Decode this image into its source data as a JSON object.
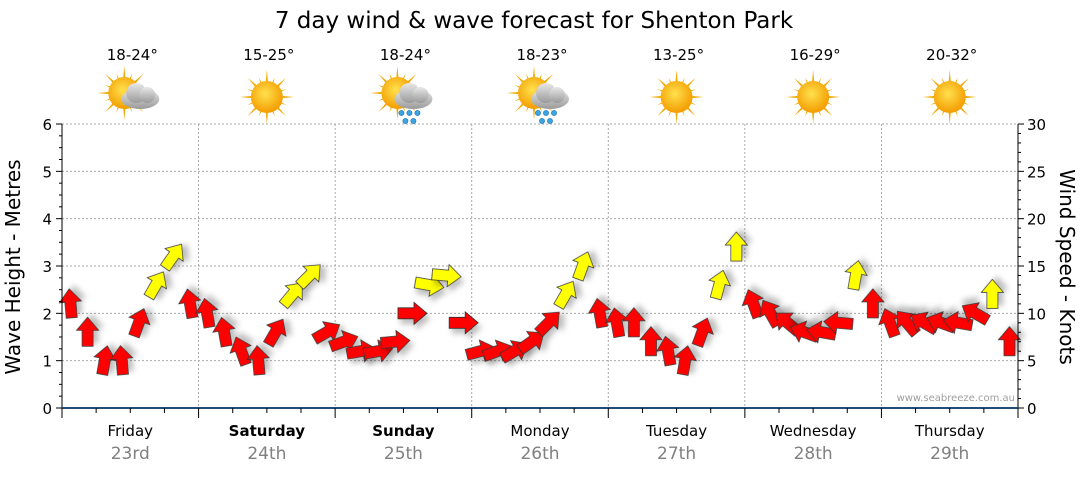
{
  "chart_data": {
    "type": "scatter",
    "title": "7 day wind & wave forecast for Shenton Park",
    "ylabel_left": "Wave Height - Metres",
    "ylabel_right": "Wind Speed - Knots",
    "ylim_left": [
      0,
      6
    ],
    "ylim_right": [
      0,
      30
    ],
    "yticks_left": [
      "0",
      "1",
      "2",
      "3",
      "4",
      "5",
      "6"
    ],
    "yticks_right": [
      "0",
      "5",
      "10",
      "15",
      "20",
      "25",
      "30"
    ],
    "grid": true,
    "watermark": "www.seabreeze.com.au",
    "colors": {
      "light": "#ff0000",
      "strong": "#ffff00",
      "grid": "#aaaaaa",
      "axis": "#1f4e79"
    },
    "strong_threshold_knots": 12,
    "days": [
      {
        "name": "Friday",
        "date": "23rd",
        "temp": "18-24°",
        "icon": "sun-cloud-icon",
        "weekend": false
      },
      {
        "name": "Saturday",
        "date": "24th",
        "temp": "15-25°",
        "icon": "sun-icon",
        "weekend": true
      },
      {
        "name": "Sunday",
        "date": "25th",
        "temp": "18-24°",
        "icon": "sun-rain-icon",
        "weekend": true
      },
      {
        "name": "Monday",
        "date": "26th",
        "temp": "18-23°",
        "icon": "sun-rain-icon",
        "weekend": false
      },
      {
        "name": "Tuesday",
        "date": "27th",
        "temp": "13-25°",
        "icon": "sun-icon",
        "weekend": false
      },
      {
        "name": "Wednesday",
        "date": "28th",
        "temp": "16-29°",
        "icon": "sun-icon",
        "weekend": false
      },
      {
        "name": "Thursday",
        "date": "29th",
        "temp": "20-32°",
        "icon": "sun-icon",
        "weekend": false
      }
    ],
    "wind_speed_knots": [
      11,
      8,
      5,
      5,
      9,
      13,
      16,
      11,
      10,
      8,
      6,
      5,
      8,
      12,
      14,
      8,
      7,
      6,
      6,
      7,
      10,
      13,
      14,
      9,
      6,
      6,
      6,
      7,
      9,
      12,
      15,
      10,
      9,
      9,
      7,
      6,
      5,
      8,
      13,
      17,
      11,
      10,
      9,
      8,
      8,
      9,
      14,
      11,
      9,
      9,
      9,
      9,
      9,
      10,
      12,
      7
    ],
    "wind_arrow_heading_deg": [
      95,
      90,
      80,
      95,
      70,
      60,
      55,
      100,
      100,
      100,
      110,
      95,
      60,
      50,
      45,
      30,
      20,
      10,
      10,
      5,
      0,
      -10,
      -5,
      0,
      15,
      20,
      30,
      35,
      45,
      60,
      70,
      100,
      100,
      90,
      90,
      100,
      80,
      70,
      75,
      90,
      110,
      120,
      140,
      160,
      170,
      175,
      80,
      90,
      110,
      130,
      150,
      160,
      170,
      150,
      90,
      90
    ]
  }
}
